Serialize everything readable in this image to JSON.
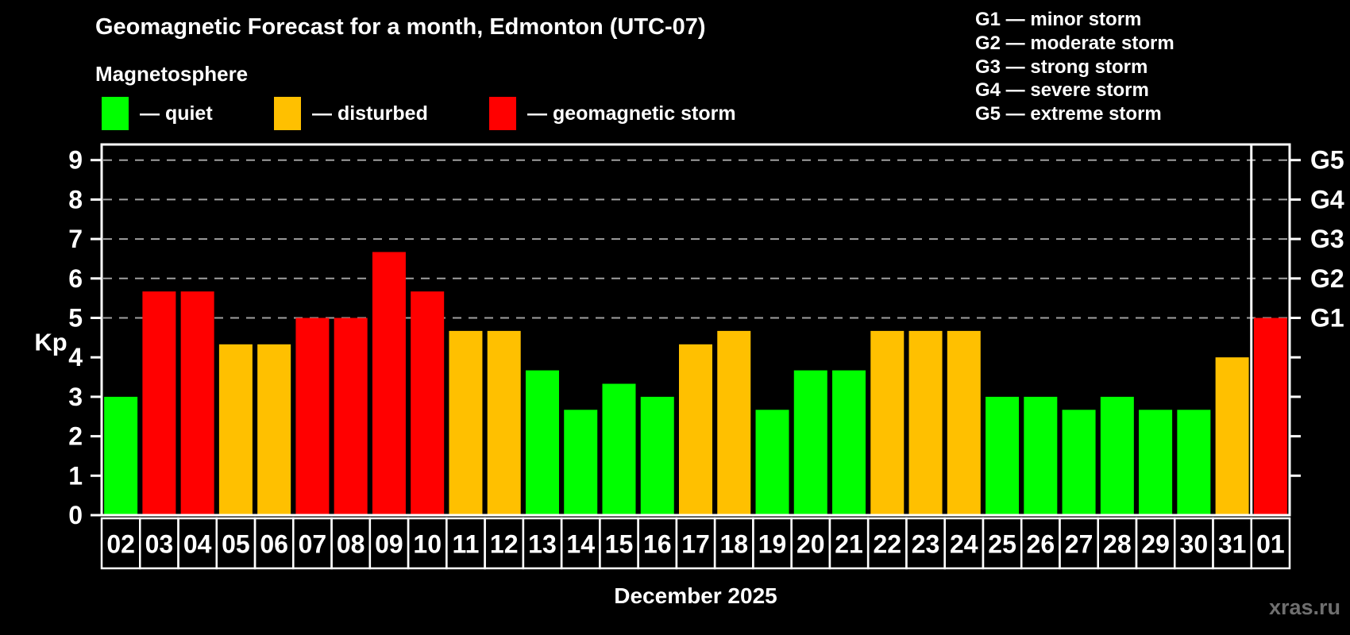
{
  "watermark": "xras.ru",
  "chart_data": {
    "type": "bar",
    "title": "Geomagnetic Forecast for a month, Edmonton (UTC-07)",
    "subtitle": "Magnetosphere",
    "xlabel": "December 2025",
    "ylabel": "Kp",
    "ylim": [
      0,
      9.4
    ],
    "yticks": [
      0,
      1,
      2,
      3,
      4,
      5,
      6,
      7,
      8,
      9
    ],
    "gridlines_at": [
      5,
      6,
      7,
      8,
      9
    ],
    "grid": "dashed-horizontal-only",
    "legend_position": "top-left",
    "right_axis_labels": [
      {
        "kp": 5,
        "label": "G1"
      },
      {
        "kp": 6,
        "label": "G2"
      },
      {
        "kp": 7,
        "label": "G3"
      },
      {
        "kp": 8,
        "label": "G4"
      },
      {
        "kp": 9,
        "label": "G5"
      }
    ],
    "categories": [
      "02",
      "03",
      "04",
      "05",
      "06",
      "07",
      "08",
      "09",
      "10",
      "11",
      "12",
      "13",
      "14",
      "15",
      "16",
      "17",
      "18",
      "19",
      "20",
      "21",
      "22",
      "23",
      "24",
      "25",
      "26",
      "27",
      "28",
      "29",
      "30",
      "31",
      "01"
    ],
    "values": [
      3.0,
      5.67,
      5.67,
      4.33,
      4.33,
      5.0,
      5.0,
      6.67,
      5.67,
      4.67,
      4.67,
      3.67,
      2.67,
      3.33,
      3.0,
      4.33,
      4.67,
      2.67,
      3.67,
      3.67,
      4.67,
      4.67,
      4.67,
      3.0,
      3.0,
      2.67,
      3.0,
      2.67,
      2.67,
      4.0,
      5.0
    ],
    "statuses": [
      "quiet",
      "storm",
      "storm",
      "disturbed",
      "disturbed",
      "storm",
      "storm",
      "storm",
      "storm",
      "disturbed",
      "disturbed",
      "quiet",
      "quiet",
      "quiet",
      "quiet",
      "disturbed",
      "disturbed",
      "quiet",
      "quiet",
      "quiet",
      "disturbed",
      "disturbed",
      "disturbed",
      "quiet",
      "quiet",
      "quiet",
      "quiet",
      "quiet",
      "quiet",
      "disturbed",
      "storm"
    ],
    "month_separator_after_category": "31",
    "colors": {
      "quiet": "#00FF00",
      "disturbed": "#FFC000",
      "storm": "#FF0000",
      "grid": "#A0A0A0",
      "axis": "#FFFFFF",
      "background": "#000000"
    },
    "legend": {
      "items": [
        {
          "name": "quiet",
          "label": "— quiet",
          "color": "#00FF00"
        },
        {
          "name": "disturbed",
          "label": "— disturbed",
          "color": "#FFC000"
        },
        {
          "name": "storm",
          "label": "— geomagnetic storm",
          "color": "#FF0000"
        }
      ]
    },
    "legend_right": {
      "items": [
        {
          "text": "G1 — minor storm"
        },
        {
          "text": "G2 — moderate storm"
        },
        {
          "text": "G3 — strong storm"
        },
        {
          "text": "G4 — severe storm"
        },
        {
          "text": "G5 — extreme storm"
        }
      ]
    }
  }
}
